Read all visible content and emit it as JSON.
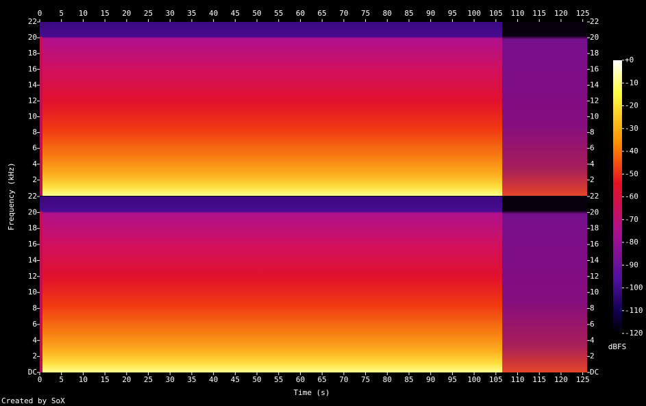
{
  "footer": "Created by SoX",
  "chart_data": [
    {
      "type": "spectrogram",
      "ylabel": "Frequency (kHz)",
      "xlim": [
        0,
        126
      ],
      "xticks": [
        0,
        5,
        10,
        15,
        20,
        25,
        30,
        35,
        40,
        45,
        50,
        55,
        60,
        65,
        70,
        75,
        80,
        85,
        90,
        95,
        100,
        105,
        110,
        115,
        120,
        125
      ],
      "ylim": [
        0,
        22
      ],
      "yticks": [
        2,
        4,
        6,
        8,
        10,
        12,
        14,
        16,
        18,
        20,
        22
      ],
      "colorbar": {
        "label": "dBFS",
        "lim": [
          -120,
          0
        ],
        "ticks": [
          {
            "value": 0,
            "label": "+0"
          },
          -10,
          -20,
          -30,
          -40,
          -50,
          -60,
          -70,
          -80,
          -90,
          -100,
          -110,
          -120
        ]
      }
    },
    {
      "type": "spectrogram",
      "xlabel": "Time (s)",
      "xlim": [
        0,
        126
      ],
      "xticks": [
        0,
        5,
        10,
        15,
        20,
        25,
        30,
        35,
        40,
        45,
        50,
        55,
        60,
        65,
        70,
        75,
        80,
        85,
        90,
        95,
        100,
        105,
        110,
        115,
        120,
        125
      ],
      "ylim": [
        0,
        22
      ],
      "yticks": [
        {
          "value": 0,
          "label": "DC"
        },
        2,
        4,
        6,
        8,
        10,
        12,
        14,
        16,
        18,
        20,
        22
      ]
    }
  ]
}
